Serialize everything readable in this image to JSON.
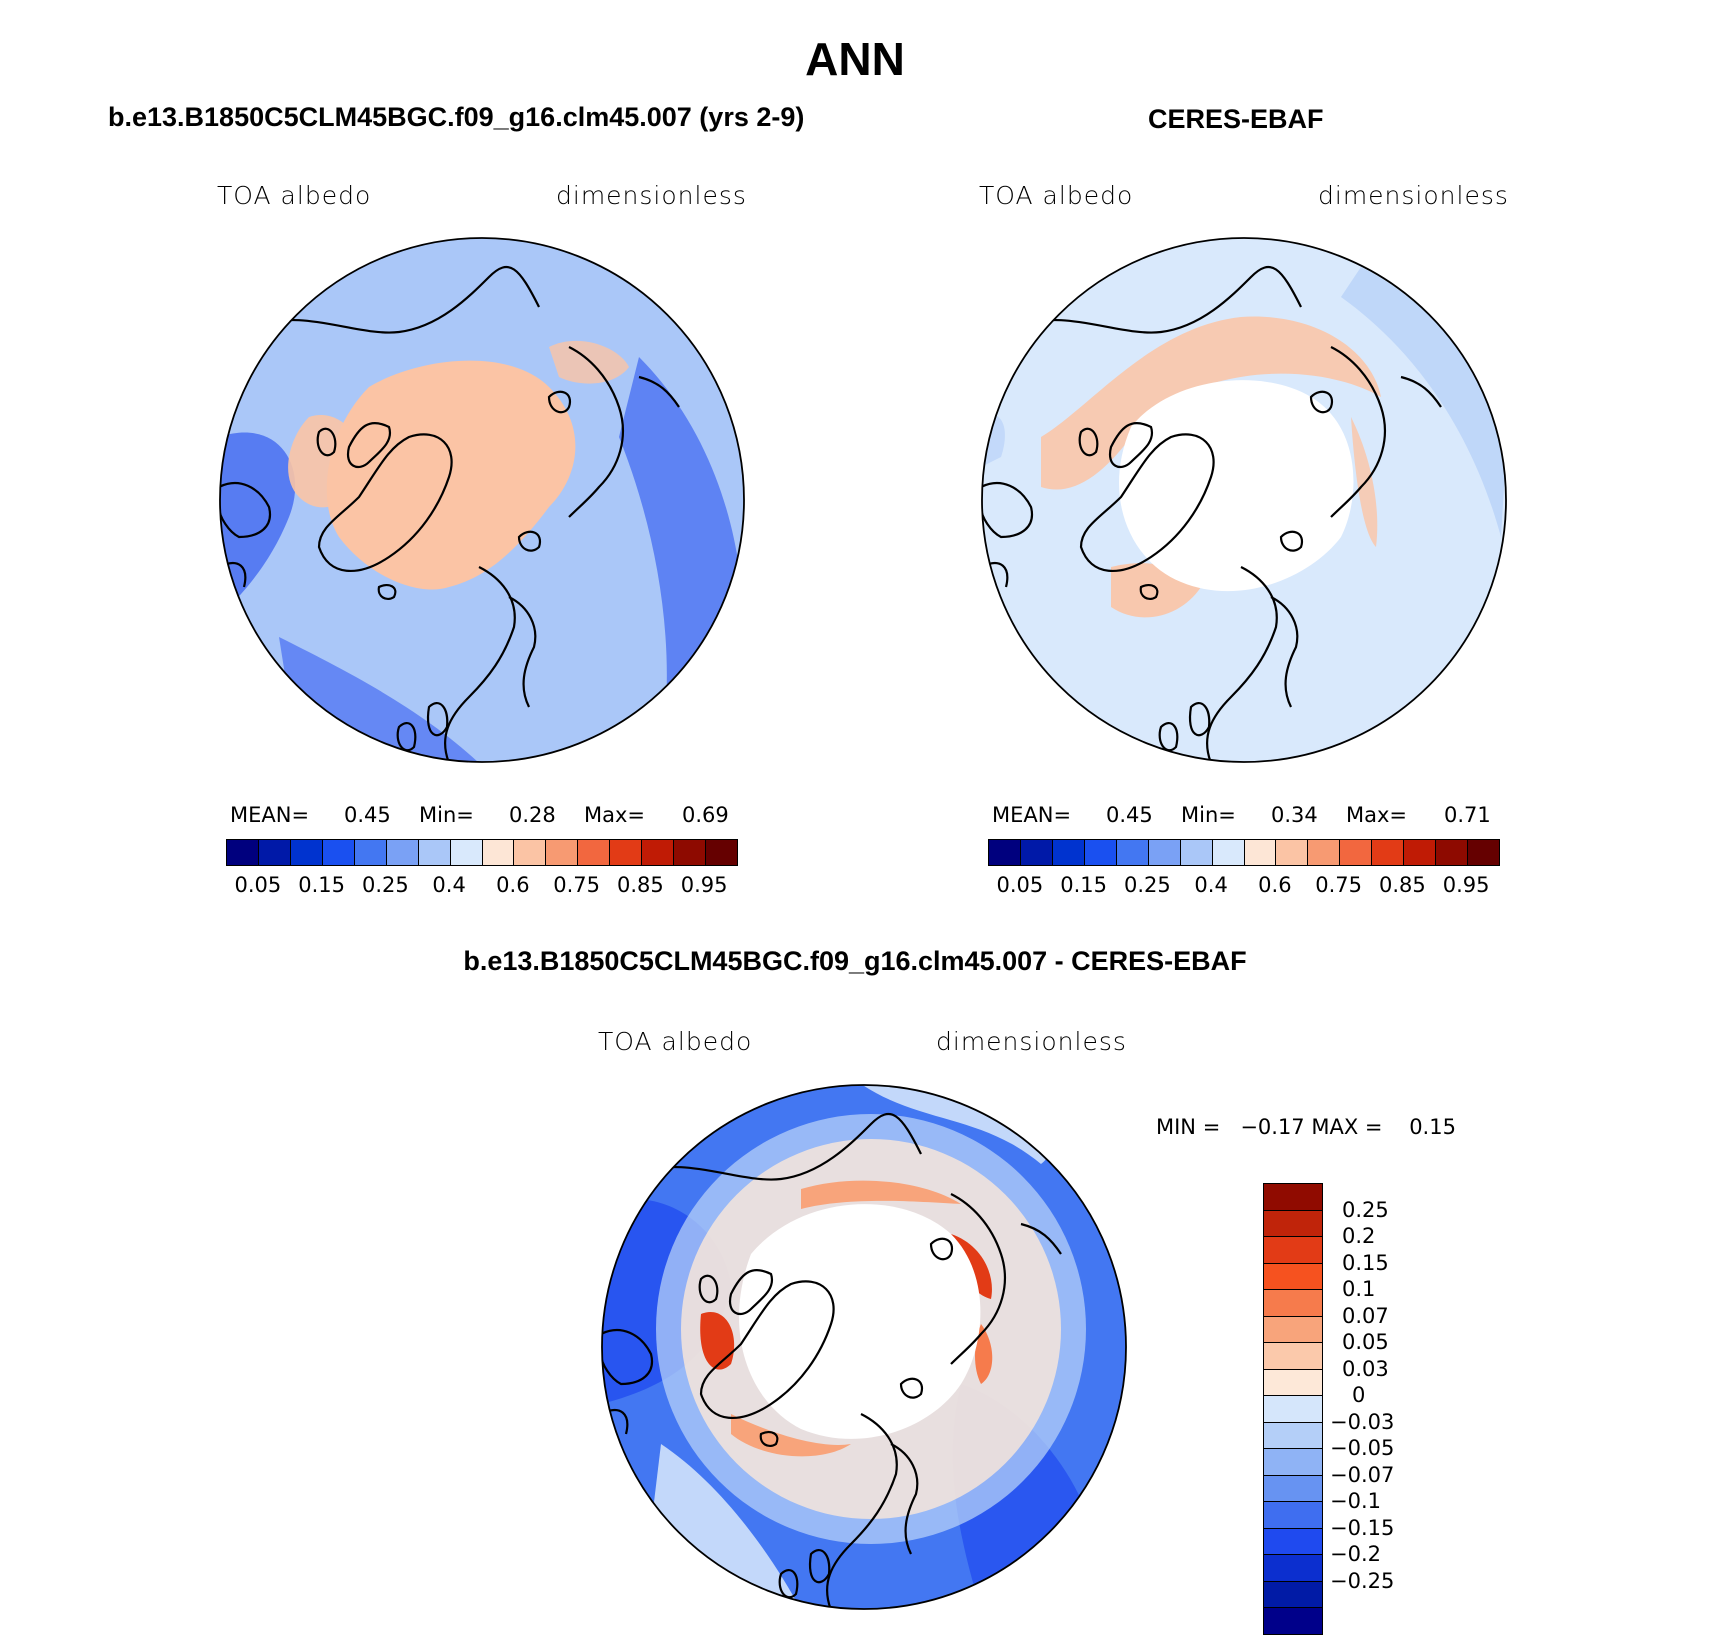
{
  "figure": {
    "title": "ANN"
  },
  "panel_model": {
    "subtitle": "b.e13.B1850C5CLM45BGC.f09_g16.clm45.007 (yrs 2-9)",
    "left_label": "TOA albedo",
    "right_label": "dimensionless",
    "mean_label": "MEAN=",
    "mean_value": "0.45",
    "min_label": "Min=",
    "min_value": "0.28",
    "max_label": "Max=",
    "max_value": "0.69"
  },
  "panel_obs": {
    "subtitle": "CERES-EBAF",
    "left_label": "TOA albedo",
    "right_label": "dimensionless",
    "mean_label": "MEAN=",
    "mean_value": "0.45",
    "min_label": "Min=",
    "min_value": "0.34",
    "max_label": "Max=",
    "max_value": "0.71"
  },
  "panel_diff": {
    "subtitle": "b.e13.B1850C5CLM45BGC.f09_g16.clm45.007 - CERES-EBAF",
    "left_label": "TOA albedo",
    "right_label": "dimensionless",
    "minmax_text": "MIN =   −0.17 MAX =    0.15"
  },
  "abs_colorbar": {
    "colors": [
      "#00007e",
      "#0019a8",
      "#0033cf",
      "#1a50f0",
      "#4377f2",
      "#7aa1f5",
      "#aac7f8",
      "#d9e9fc",
      "#fde6d6",
      "#fbc4a5",
      "#f79a72",
      "#f2673f",
      "#e23b16",
      "#c01b05",
      "#8e0a00",
      "#650000"
    ],
    "tick_labels": [
      "0.05",
      "0.15",
      "0.25",
      "0.4",
      "0.6",
      "0.75",
      "0.85",
      "0.95"
    ]
  },
  "diff_colorbar": {
    "colors_top_to_bottom": [
      "#900b00",
      "#c0240a",
      "#e23b16",
      "#f6521f",
      "#f67b4c",
      "#f8a47b",
      "#fbc9ab",
      "#fde8d8",
      "#d5e6fb",
      "#b4cff8",
      "#8fb3f5",
      "#6793f2",
      "#3f6ef0",
      "#1f4aef",
      "#0c2fcf",
      "#011ba6",
      "#00008a"
    ],
    "tick_labels": [
      "0.25",
      "0.2",
      "0.15",
      "0.1",
      "0.07",
      "0.05",
      "0.03",
      "0",
      "−0.03",
      "−0.05",
      "−0.07",
      "−0.1",
      "−0.15",
      "−0.2",
      "−0.25"
    ]
  },
  "map_fill": {
    "ocean_model": "#aac7f8",
    "arctic_model": "#fbc4a5",
    "ocean_obs": "#d9e9fc",
    "pole_obs": "#ffffff",
    "diff_outer": "#4377f2",
    "diff_inner": "#ffffff",
    "coast": "#000000"
  }
}
